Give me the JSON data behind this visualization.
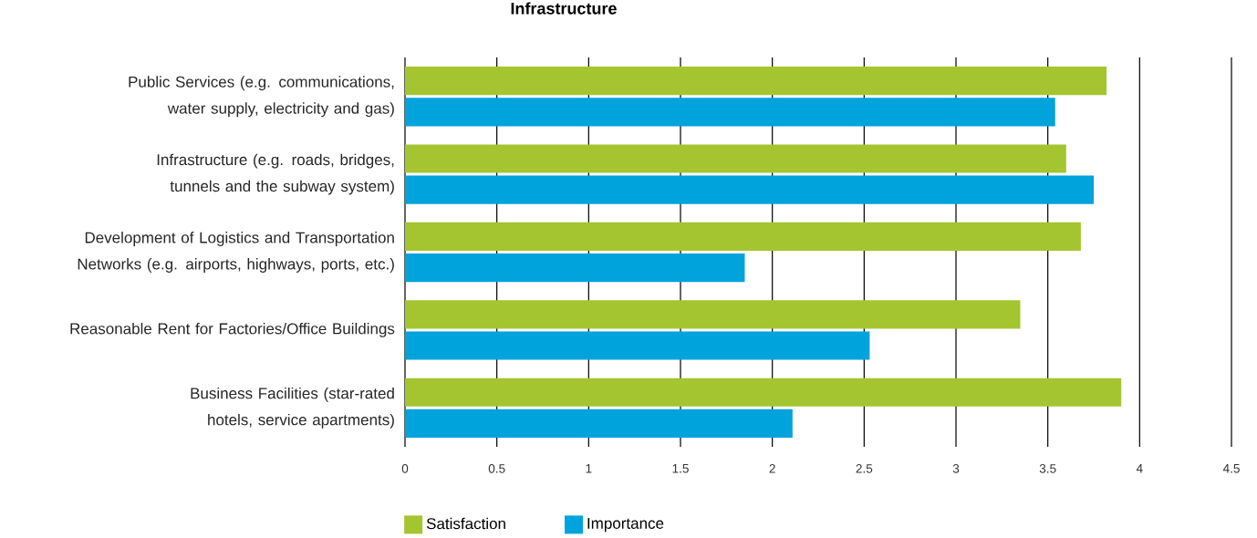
{
  "chart_data": {
    "type": "bar",
    "orientation": "horizontal",
    "title": "Infrastructure",
    "categories": [
      "Public Services (e.g. communications, water supply, electricity and gas)",
      "Infrastructure (e.g. roads, bridges, tunnels and the subway system)",
      "Development of Logistics and Transportation Networks (e.g. airports, highways, ports, etc.)",
      "Reasonable Rent for Factories/Office Buildings",
      "Business Facilities (star-rated hotels, service apartments)"
    ],
    "series": [
      {
        "name": "Satisfaction",
        "color": "#a5c530",
        "values": [
          3.82,
          3.6,
          3.68,
          3.35,
          3.9
        ]
      },
      {
        "name": "Importance",
        "color": "#00a3dc",
        "values": [
          3.54,
          3.75,
          1.85,
          2.53,
          2.11
        ]
      }
    ],
    "xlim": [
      0,
      4.5
    ],
    "xticks": [
      0,
      0.5,
      1,
      1.5,
      2,
      2.5,
      3,
      3.5,
      4,
      4.5
    ],
    "grid": "x",
    "legend": "bottom"
  }
}
